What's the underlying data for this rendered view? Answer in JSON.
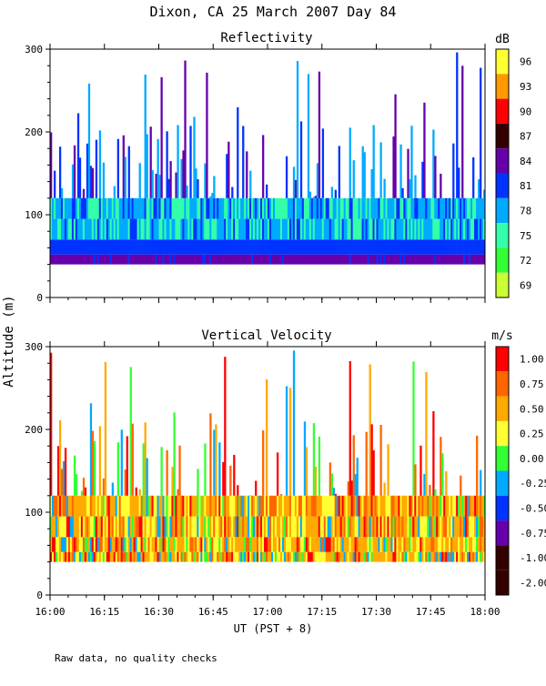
{
  "page": {
    "title": "Dixon, CA 25 March 2007  Day  84",
    "footnote": "Raw data, no quality checks",
    "shared_ylabel": "Altitude (m)",
    "shared_xlabel": "UT  (PST + 8)"
  },
  "chart_data": [
    {
      "type": "heatmap",
      "title": "Reflectivity",
      "xlabel": "UT  (PST + 8)",
      "ylabel": "Altitude (m)",
      "xlim": [
        "16:00",
        "18:00"
      ],
      "x_ticks": [
        "16:00",
        "16:15",
        "16:30",
        "16:45",
        "17:00",
        "17:15",
        "17:30",
        "17:45",
        "18:00"
      ],
      "ylim": [
        0,
        300
      ],
      "y_ticks": [
        0,
        100,
        200,
        300
      ],
      "colorbar": {
        "unit": "dB",
        "labels": [
          "96",
          "93",
          "90",
          "87",
          "84",
          "81",
          "78",
          "75",
          "72",
          "69"
        ],
        "colors": [
          "#ffff33",
          "#ff9900",
          "#ff0000",
          "#330000",
          "#6600aa",
          "#0033ff",
          "#00aaff",
          "#33ffaa",
          "#33ff33",
          "#ccff33"
        ]
      },
      "data_extent": {
        "min_altitude": 40,
        "dense_layer_top": 120,
        "max_altitude": 300
      }
    },
    {
      "type": "heatmap",
      "title": "Vertical Velocity",
      "xlabel": "UT  (PST + 8)",
      "ylabel": "Altitude (m)",
      "xlim": [
        "16:00",
        "18:00"
      ],
      "x_ticks": [
        "16:00",
        "16:15",
        "16:30",
        "16:45",
        "17:00",
        "17:15",
        "17:30",
        "17:45",
        "18:00"
      ],
      "ylim": [
        0,
        300
      ],
      "y_ticks": [
        0,
        100,
        200,
        300
      ],
      "colorbar": {
        "unit": "m/s",
        "labels": [
          "1.00",
          "0.75",
          "0.50",
          "0.25",
          "0.00",
          "-0.25",
          "-0.50",
          "-0.75",
          "-1.00",
          "-2.00"
        ],
        "colors": [
          "#ff0000",
          "#ff6600",
          "#ffaa00",
          "#ffff33",
          "#33ff33",
          "#00aaff",
          "#0033ff",
          "#6600aa",
          "#330000",
          "#330000"
        ]
      },
      "data_extent": {
        "min_altitude": 40,
        "dense_layer_top": 120,
        "max_altitude": 300
      }
    }
  ]
}
